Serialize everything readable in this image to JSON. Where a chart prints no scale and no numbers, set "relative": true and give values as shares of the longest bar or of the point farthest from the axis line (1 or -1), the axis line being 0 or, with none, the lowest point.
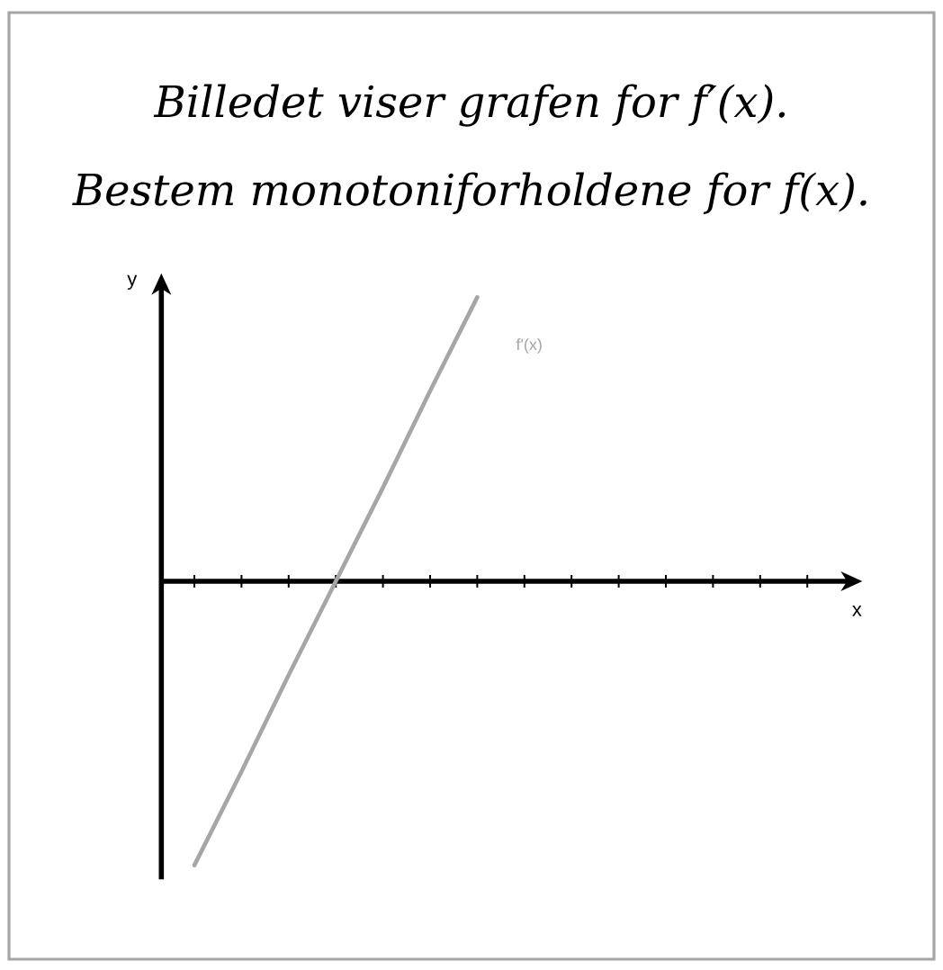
{
  "chart_data": {
    "type": "line",
    "relative": true,
    "title": "Billedet viser grafen for f′(x).",
    "subtitle": "Bestem monotoniforholdene for f(x).",
    "xlabel": "x",
    "ylabel": "y",
    "categories": [
      null,
      null,
      null,
      null,
      null,
      null,
      null,
      null,
      null,
      null,
      null,
      null,
      null,
      null
    ],
    "series": [
      {
        "name": "f'(x)",
        "color": "#a6a6a6",
        "values": [
          -1,
          -0.67,
          -0.33,
          0,
          0.33,
          0.67,
          1,
          null,
          null,
          null,
          null,
          null,
          null,
          null
        ]
      }
    ]
  }
}
